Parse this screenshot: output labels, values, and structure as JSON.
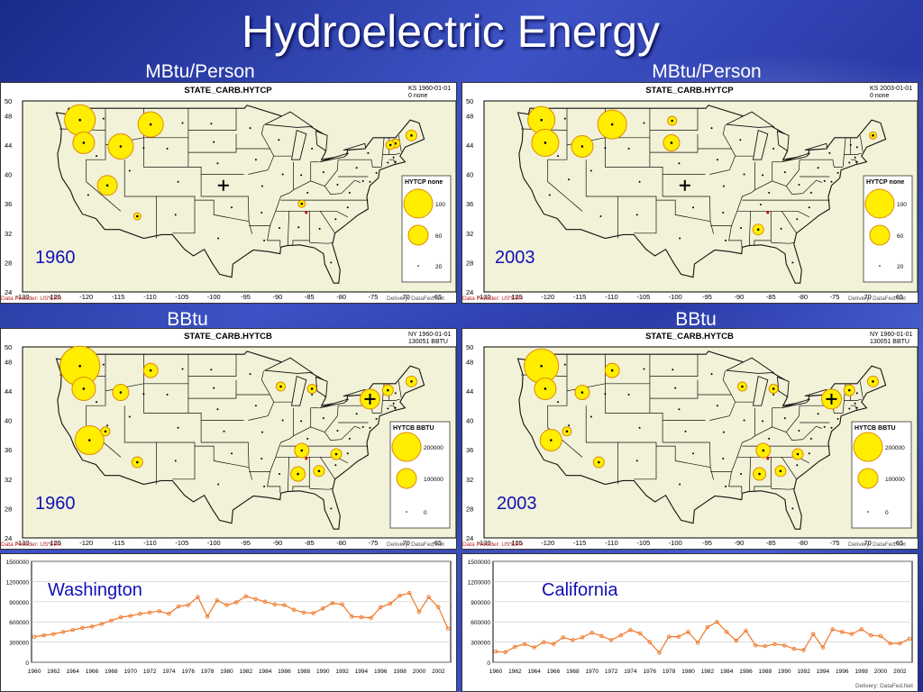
{
  "title": "Hydroelectric Energy",
  "map_panels": [
    {
      "heading": "MBtu/Person",
      "chart_title": "STATE_CARB.HYTCP",
      "corner_line1": "KS 1960-01-01",
      "corner_line2": "0 none",
      "year": "1960",
      "legend_title": "HYTCP none",
      "legend_values": [
        "100",
        "60",
        "20"
      ],
      "provider": "Data Provider: US EPA",
      "delivery": "Delivery: DataFed.Net"
    },
    {
      "heading": "MBtu/Person",
      "chart_title": "STATE_CARB.HYTCP",
      "corner_line1": "KS 2003-01-01",
      "corner_line2": "0 none",
      "year": "2003",
      "legend_title": "HYTCP none",
      "legend_values": [
        "100",
        "60",
        "20"
      ],
      "provider": "Data Provider: US EPA",
      "delivery": "Delivery: DataFed.Net"
    },
    {
      "heading": "BBtu",
      "chart_title": "STATE_CARB.HYTCB",
      "corner_line1": "NY 1960-01-01",
      "corner_line2": "130051 BBTU",
      "year": "1960",
      "legend_title": "HYTCB BBTU",
      "legend_values": [
        "200000",
        "100000",
        "0"
      ],
      "provider": "Data Provider: US EPA",
      "delivery": "Delivery: DataFed.Net"
    },
    {
      "heading": "BBtu",
      "chart_title": "STATE_CARB.HYTCB",
      "corner_line1": "NY 1960-01-01",
      "corner_line2": "130051 BBTU",
      "year": "2003",
      "legend_title": "HYTCB BBTU",
      "legend_values": [
        "200000",
        "100000",
        "0"
      ],
      "provider": "Data Provider: US EPA",
      "delivery": "Delivery: DataFed.Net"
    }
  ],
  "lat_ticks": [
    "50",
    "48",
    "44",
    "40",
    "36",
    "32",
    "28",
    "24"
  ],
  "lon_ticks": [
    "-130",
    "-125",
    "-120",
    "-115",
    "-110",
    "-105",
    "-100",
    "-95",
    "-90",
    "-85",
    "-80",
    "-75",
    "-70",
    "-65"
  ],
  "chart_data": [
    {
      "type": "line",
      "label": "Washington",
      "x": [
        1960,
        1961,
        1962,
        1963,
        1964,
        1965,
        1966,
        1967,
        1968,
        1969,
        1970,
        1971,
        1972,
        1973,
        1974,
        1975,
        1976,
        1977,
        1978,
        1979,
        1980,
        1981,
        1982,
        1983,
        1984,
        1985,
        1986,
        1987,
        1988,
        1989,
        1990,
        1991,
        1992,
        1993,
        1994,
        1995,
        1996,
        1997,
        1998,
        1999,
        2000,
        2001,
        2002,
        2003
      ],
      "y": [
        380000,
        400000,
        420000,
        450000,
        480000,
        510000,
        530000,
        570000,
        620000,
        670000,
        690000,
        720000,
        740000,
        760000,
        720000,
        830000,
        850000,
        970000,
        680000,
        920000,
        850000,
        890000,
        980000,
        940000,
        900000,
        860000,
        850000,
        780000,
        740000,
        730000,
        800000,
        880000,
        860000,
        680000,
        670000,
        660000,
        820000,
        870000,
        990000,
        1030000,
        750000,
        970000,
        820000,
        500000
      ],
      "x_ticks": [
        "1960",
        "1962",
        "1964",
        "1966",
        "1968",
        "1970",
        "1972",
        "1974",
        "1976",
        "1978",
        "1980",
        "1982",
        "1984",
        "1986",
        "1988",
        "1990",
        "1992",
        "1994",
        "1996",
        "1998",
        "2000",
        "2002"
      ],
      "y_ticks": [
        "0",
        "300000",
        "600000",
        "900000",
        "1200000",
        "1500000"
      ],
      "ylim": [
        0,
        1500000
      ],
      "line_color": "#f07828",
      "delivery": ""
    },
    {
      "type": "line",
      "label": "California",
      "x": [
        1960,
        1961,
        1962,
        1963,
        1964,
        1965,
        1966,
        1967,
        1968,
        1969,
        1970,
        1971,
        1972,
        1973,
        1974,
        1975,
        1976,
        1977,
        1978,
        1979,
        1980,
        1981,
        1982,
        1983,
        1984,
        1985,
        1986,
        1987,
        1988,
        1989,
        1990,
        1991,
        1992,
        1993,
        1994,
        1995,
        1996,
        1997,
        1998,
        1999,
        2000,
        2001,
        2002,
        2003
      ],
      "y": [
        160000,
        150000,
        230000,
        270000,
        220000,
        300000,
        270000,
        370000,
        330000,
        370000,
        440000,
        390000,
        330000,
        400000,
        480000,
        430000,
        300000,
        140000,
        380000,
        380000,
        450000,
        290000,
        520000,
        600000,
        450000,
        320000,
        470000,
        250000,
        240000,
        270000,
        250000,
        200000,
        180000,
        420000,
        220000,
        490000,
        450000,
        420000,
        490000,
        400000,
        390000,
        280000,
        280000,
        350000
      ],
      "x_ticks": [
        "1960",
        "1962",
        "1964",
        "1966",
        "1968",
        "1970",
        "1972",
        "1974",
        "1976",
        "1978",
        "1980",
        "1982",
        "1984",
        "1986",
        "1988",
        "1990",
        "1992",
        "1994",
        "1996",
        "1998",
        "2000",
        "2002"
      ],
      "y_ticks": [
        "0",
        "300000",
        "600000",
        "900000",
        "1200000",
        "1500000"
      ],
      "ylim": [
        0,
        1500000
      ],
      "line_color": "#f07828",
      "delivery": "Delivery: DataFed.Net"
    }
  ],
  "bubbles": {
    "hytcp_1960": [
      {
        "lon": -121.0,
        "lat": 47.4,
        "r": 17
      },
      {
        "lon": -120.4,
        "lat": 44.3,
        "r": 12
      },
      {
        "lon": -114.6,
        "lat": 43.8,
        "r": 14
      },
      {
        "lon": -109.9,
        "lat": 46.8,
        "r": 14
      },
      {
        "lon": -116.7,
        "lat": 38.5,
        "r": 11
      },
      {
        "lon": -112.0,
        "lat": 34.3,
        "r": 4
      },
      {
        "lon": -71.5,
        "lat": 44.2,
        "r": 5
      },
      {
        "lon": -72.3,
        "lat": 44.0,
        "r": 5
      },
      {
        "lon": -69.0,
        "lat": 45.3,
        "r": 6
      },
      {
        "lon": -86.2,
        "lat": 36.0,
        "r": 4
      }
    ],
    "hytcp_2003": [
      {
        "lon": -121.0,
        "lat": 47.4,
        "r": 15
      },
      {
        "lon": -120.4,
        "lat": 44.3,
        "r": 15
      },
      {
        "lon": -114.6,
        "lat": 43.8,
        "r": 12
      },
      {
        "lon": -109.9,
        "lat": 46.8,
        "r": 16
      },
      {
        "lon": -100.5,
        "lat": 47.3,
        "r": 5
      },
      {
        "lon": -100.6,
        "lat": 44.3,
        "r": 9
      },
      {
        "lon": -87.0,
        "lat": 32.5,
        "r": 6
      },
      {
        "lon": -69.0,
        "lat": 45.3,
        "r": 4
      }
    ],
    "hytcb_1960": [
      {
        "lon": -121.0,
        "lat": 47.4,
        "r": 22
      },
      {
        "lon": -120.4,
        "lat": 44.3,
        "r": 13
      },
      {
        "lon": -114.6,
        "lat": 43.8,
        "r": 9
      },
      {
        "lon": -109.9,
        "lat": 46.8,
        "r": 8
      },
      {
        "lon": -119.5,
        "lat": 37.3,
        "r": 16
      },
      {
        "lon": -117.0,
        "lat": 38.5,
        "r": 5
      },
      {
        "lon": -112.0,
        "lat": 34.3,
        "r": 6
      },
      {
        "lon": -75.5,
        "lat": 42.9,
        "r": 11
      },
      {
        "lon": -86.2,
        "lat": 35.9,
        "r": 8
      },
      {
        "lon": -86.8,
        "lat": 32.7,
        "r": 8
      },
      {
        "lon": -83.5,
        "lat": 33.1,
        "r": 6
      },
      {
        "lon": -80.8,
        "lat": 35.4,
        "r": 6
      },
      {
        "lon": -72.7,
        "lat": 44.1,
        "r": 6
      },
      {
        "lon": -89.5,
        "lat": 44.6,
        "r": 5
      },
      {
        "lon": -84.6,
        "lat": 44.3,
        "r": 5
      },
      {
        "lon": -69.0,
        "lat": 45.3,
        "r": 6
      }
    ],
    "hytcb_2003": [
      {
        "lon": -121.0,
        "lat": 47.4,
        "r": 19
      },
      {
        "lon": -120.4,
        "lat": 44.3,
        "r": 12
      },
      {
        "lon": -114.6,
        "lat": 43.8,
        "r": 8
      },
      {
        "lon": -109.9,
        "lat": 46.8,
        "r": 8
      },
      {
        "lon": -119.5,
        "lat": 37.3,
        "r": 12
      },
      {
        "lon": -117.0,
        "lat": 38.5,
        "r": 5
      },
      {
        "lon": -112.0,
        "lat": 34.3,
        "r": 6
      },
      {
        "lon": -75.5,
        "lat": 42.9,
        "r": 11
      },
      {
        "lon": -86.2,
        "lat": 35.9,
        "r": 8
      },
      {
        "lon": -86.8,
        "lat": 32.7,
        "r": 7
      },
      {
        "lon": -83.5,
        "lat": 33.1,
        "r": 6
      },
      {
        "lon": -80.8,
        "lat": 35.4,
        "r": 6
      },
      {
        "lon": -72.7,
        "lat": 44.1,
        "r": 6
      },
      {
        "lon": -89.5,
        "lat": 44.6,
        "r": 5
      },
      {
        "lon": -84.6,
        "lat": 44.3,
        "r": 5
      },
      {
        "lon": -69.0,
        "lat": 45.3,
        "r": 6
      }
    ]
  },
  "colors": {
    "bubble_fill": "#ffee00",
    "bubble_stroke": "#e08a00",
    "map_background": "#f2f2d8",
    "line_color": "#f07828",
    "series_label_color": "#1010b8"
  }
}
